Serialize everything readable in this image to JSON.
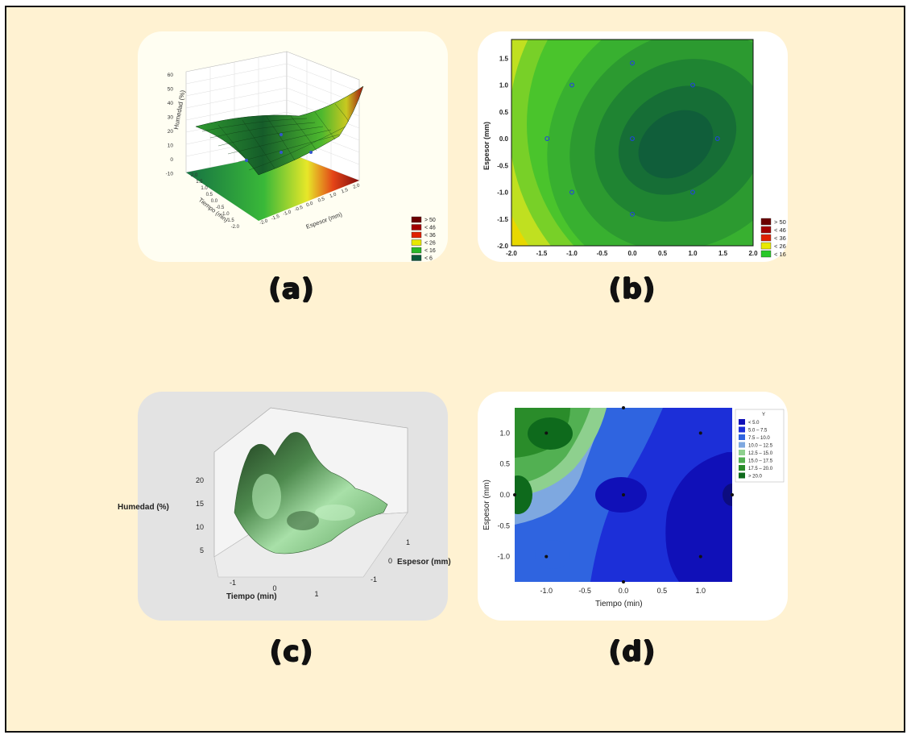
{
  "captions": {
    "a": "(a)",
    "b": "(b)",
    "c": "(c)",
    "d": "(d)"
  },
  "chart_data": [
    {
      "panel": "a",
      "type": "surface3d",
      "zlabel": "Humedad (%)",
      "xlabel": "Espesor (mm)",
      "ylabel": "Tiempo (min)",
      "z_ticks": [
        "60",
        "50",
        "40",
        "30",
        "20",
        "10",
        "0",
        "-10"
      ],
      "x_ticks": [
        "2.0",
        "1.5",
        "1.0",
        "0.5",
        "0.0",
        "-0.5",
        "-1.0",
        "-1.5",
        "-2.0"
      ],
      "y_ticks": [
        "2.0",
        "1.5",
        "1.0",
        "0.5",
        "0.0",
        "-0.5",
        "-1.0",
        "-1.5",
        "-2.0"
      ],
      "legend": [
        "> 50",
        "< 46",
        "< 36",
        "< 26",
        "< 16",
        "< 6"
      ],
      "legend_colors": [
        "#6b0000",
        "#a30000",
        "#e02000",
        "#e8e800",
        "#28b828",
        "#0a5a3a"
      ]
    },
    {
      "panel": "b",
      "type": "contour",
      "xlabel": "",
      "ylabel": "Espesor (mm)",
      "x_ticks": [
        "-2.0",
        "-1.5",
        "-1.0",
        "-0.5",
        "0.0",
        "0.5",
        "1.0",
        "1.5",
        "2.0"
      ],
      "y_ticks": [
        "1.5",
        "1.0",
        "0.5",
        "0.0",
        "-0.5",
        "-1.0",
        "-1.5",
        "-2.0"
      ],
      "xlim": [
        -2,
        2
      ],
      "ylim": [
        -2,
        1.85
      ],
      "points": [
        [
          0,
          1.41
        ],
        [
          -1,
          1
        ],
        [
          1,
          1
        ],
        [
          -1.41,
          0
        ],
        [
          0,
          0
        ],
        [
          1.41,
          0
        ],
        [
          -1,
          -1
        ],
        [
          1,
          -1
        ],
        [
          0,
          -1.41
        ]
      ],
      "legend": [
        "> 50",
        "< 46",
        "< 36",
        "< 26",
        "< 16"
      ],
      "legend_colors": [
        "#6b0000",
        "#a30000",
        "#e02000",
        "#e8e800",
        "#28c828"
      ]
    },
    {
      "panel": "c",
      "type": "surface3d",
      "zlabel": "Humedad (%)",
      "xlabel": "Tiempo (min)",
      "ylabel": "Espesor (mm)",
      "z_ticks": [
        "20",
        "15",
        "10",
        "5"
      ],
      "x_ticks": [
        "-1",
        "0",
        "1"
      ],
      "y_ticks": [
        "1",
        "0",
        "-1"
      ]
    },
    {
      "panel": "d",
      "type": "contour",
      "xlabel": "Tiempo (min)",
      "ylabel": "Espesor (mm)",
      "x_ticks": [
        "-1.0",
        "-0.5",
        "0.0",
        "0.5",
        "1.0"
      ],
      "y_ticks": [
        "1.0",
        "0.5",
        "0.0",
        "-0.5",
        "-1.0"
      ],
      "xlim": [
        -1.41,
        1.41
      ],
      "ylim": [
        -1.41,
        1.41
      ],
      "points": [
        [
          -1,
          1
        ],
        [
          1,
          1
        ],
        [
          0,
          0
        ],
        [
          -1,
          -1
        ],
        [
          1,
          -1
        ],
        [
          0,
          1.41
        ],
        [
          0,
          -1.41
        ],
        [
          1.41,
          0
        ],
        [
          -1.41,
          0
        ]
      ],
      "legend_title": "Y",
      "legend": [
        "<  5.0",
        "5.0 –  7.5",
        "7.5 – 10.0",
        "10.0 – 12.5",
        "12.5 – 15.0",
        "15.0 – 17.5",
        "17.5 – 20.0",
        ">  20.0"
      ],
      "legend_colors": [
        "#1010b8",
        "#1c2fd8",
        "#2f64e0",
        "#7ea8e0",
        "#8ed08e",
        "#52b052",
        "#2a8c2a",
        "#0e6a1c"
      ]
    }
  ]
}
